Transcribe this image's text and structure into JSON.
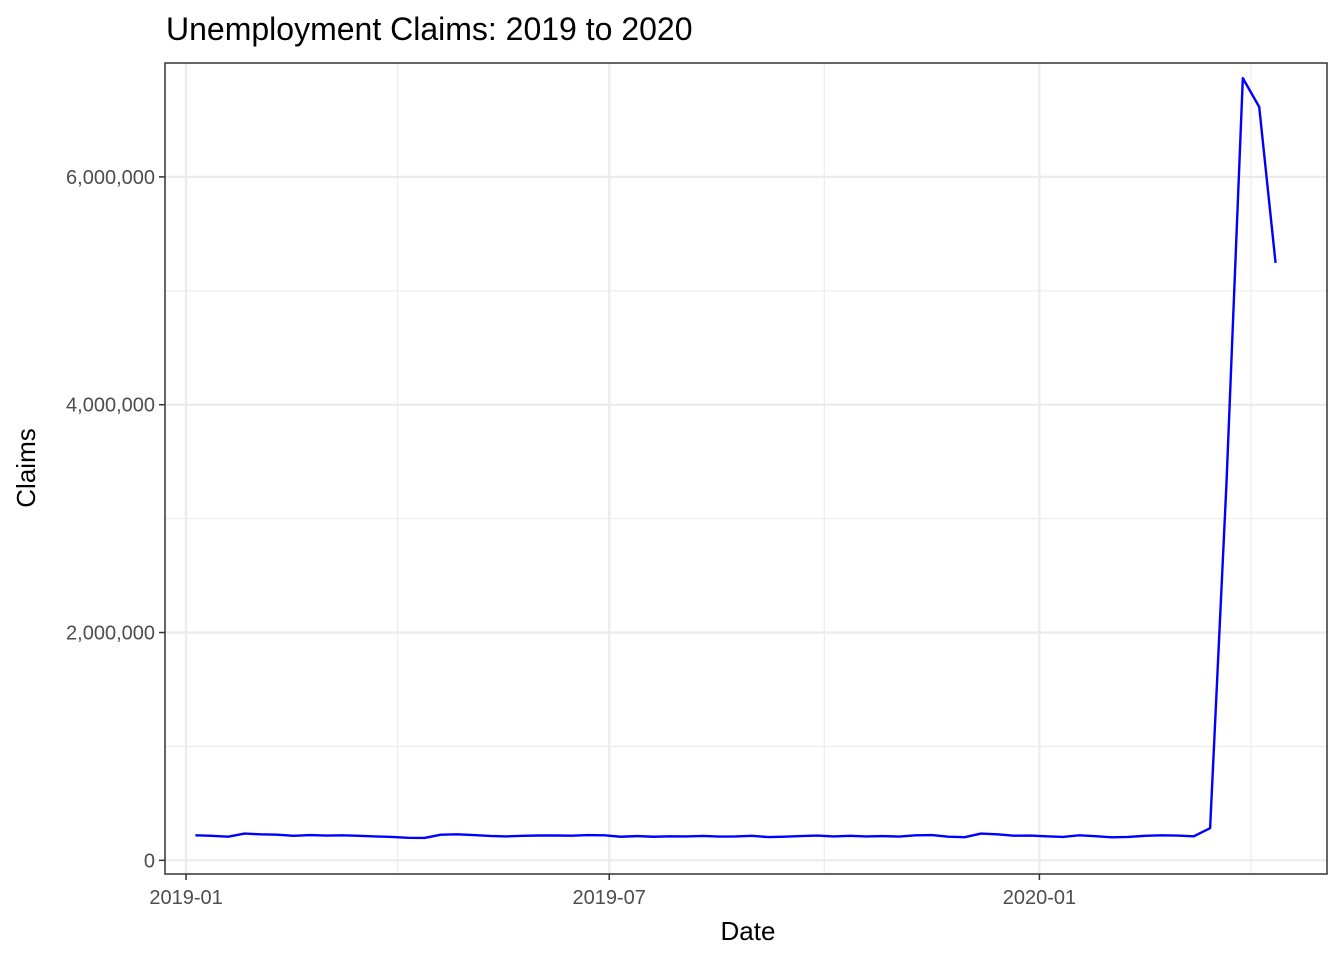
{
  "chart_data": {
    "type": "line",
    "title": "Unemployment Claims: 2019 to 2020",
    "xlabel": "Date",
    "ylabel": "Claims",
    "x_ticks": [
      "2019-01-01",
      "2019-07-01",
      "2020-01-01"
    ],
    "x_tick_labels": [
      "2019-01",
      "2019-07",
      "2020-01"
    ],
    "y_ticks": [
      0,
      2000000,
      4000000,
      6000000
    ],
    "y_tick_labels": [
      "0",
      "2,000,000",
      "4,000,000",
      "6,000,000"
    ],
    "xlim": [
      "2018-12-23",
      "2020-05-03"
    ],
    "ylim": [
      -120000,
      7000000
    ],
    "grid": true,
    "legend": "none",
    "colors": {
      "line": "#0000ff"
    },
    "series": [
      {
        "x": [
          "2019-01-05",
          "2019-01-12",
          "2019-01-19",
          "2019-01-26",
          "2019-02-02",
          "2019-02-09",
          "2019-02-16",
          "2019-02-23",
          "2019-03-02",
          "2019-03-09",
          "2019-03-16",
          "2019-03-23",
          "2019-03-30",
          "2019-04-06",
          "2019-04-13",
          "2019-04-20",
          "2019-04-27",
          "2019-05-04",
          "2019-05-11",
          "2019-05-18",
          "2019-05-25",
          "2019-06-01",
          "2019-06-08",
          "2019-06-15",
          "2019-06-22",
          "2019-06-29",
          "2019-07-06",
          "2019-07-13",
          "2019-07-20",
          "2019-07-27",
          "2019-08-03",
          "2019-08-10",
          "2019-08-17",
          "2019-08-24",
          "2019-08-31",
          "2019-09-07",
          "2019-09-14",
          "2019-09-21",
          "2019-09-28",
          "2019-10-05",
          "2019-10-12",
          "2019-10-19",
          "2019-10-26",
          "2019-11-02",
          "2019-11-09",
          "2019-11-16",
          "2019-11-23",
          "2019-11-30",
          "2019-12-07",
          "2019-12-14",
          "2019-12-21",
          "2019-12-28",
          "2020-01-04",
          "2020-01-11",
          "2020-01-18",
          "2020-01-25",
          "2020-02-01",
          "2020-02-08",
          "2020-02-15",
          "2020-02-22",
          "2020-02-29",
          "2020-03-07",
          "2020-03-14",
          "2020-03-21",
          "2020-03-28",
          "2020-04-04",
          "2020-04-11"
        ],
        "values": [
          220000,
          215000,
          208000,
          235000,
          228000,
          225000,
          215000,
          222000,
          217000,
          220000,
          215000,
          210000,
          205000,
          198000,
          197000,
          225000,
          228000,
          222000,
          214000,
          210000,
          215000,
          218000,
          218000,
          216000,
          222000,
          220000,
          207000,
          213000,
          207000,
          211000,
          210000,
          214000,
          209000,
          210000,
          215000,
          204000,
          208000,
          213000,
          217000,
          210000,
          215000,
          210000,
          213000,
          209000,
          220000,
          222000,
          208000,
          203000,
          235000,
          228000,
          216000,
          217000,
          211000,
          205000,
          220000,
          212000,
          202000,
          205000,
          215000,
          220000,
          217000,
          211000,
          282000,
          3307000,
          6867000,
          6615000,
          5245000
        ]
      }
    ]
  }
}
